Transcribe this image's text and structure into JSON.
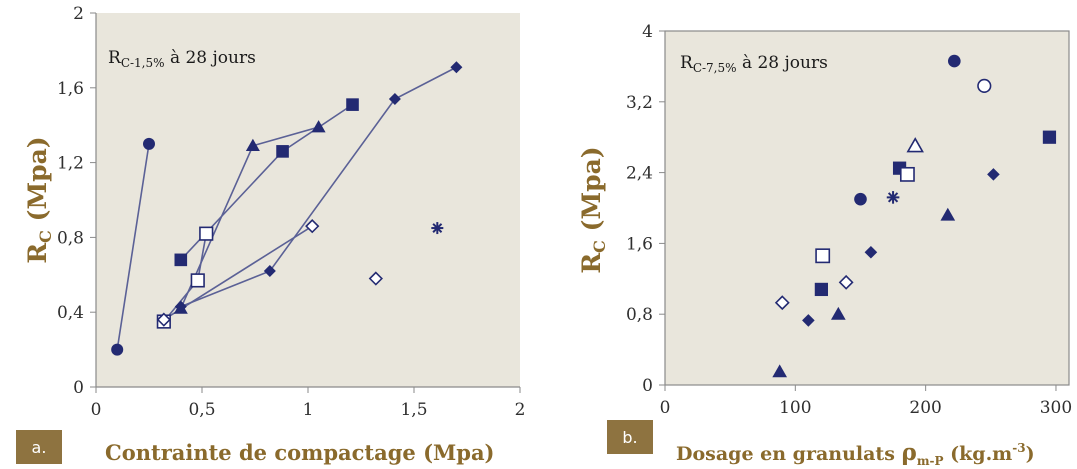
{
  "colors": {
    "plot_background": "#e9e6dc",
    "marker": "#232a72",
    "line": "#5b6196",
    "axis_title": "#8a6a2c",
    "badge": "#8e7340"
  },
  "chart_data": [
    {
      "type": "scatter",
      "panel_label": "a.",
      "inset_main": "R",
      "inset_sub": "C-1,5%",
      "inset_rest": "  à 28 jours",
      "xlabel": "Contrainte de compactage (Mpa)",
      "ylabel_main": "R",
      "ylabel_sub": "C",
      "ylabel_rest": " (Mpa)",
      "xlim": [
        0,
        2
      ],
      "ylim": [
        0,
        2
      ],
      "xticks": [
        0,
        0.5,
        1,
        1.5,
        2
      ],
      "xtick_labels": [
        "0",
        "0,5",
        "1",
        "1,5",
        "2"
      ],
      "yticks": [
        0,
        0.4,
        0.8,
        1.2,
        1.6,
        2
      ],
      "ytick_labels": [
        "0",
        "0,4",
        "0,8",
        "1,2",
        "1,6",
        "2"
      ],
      "grid": false,
      "series": [
        {
          "marker": "circle-filled",
          "connected": true,
          "points": [
            [
              0.1,
              0.2
            ],
            [
              0.25,
              1.3
            ]
          ]
        },
        {
          "marker": "square-filled",
          "connected": true,
          "points": [
            [
              0.4,
              0.68
            ],
            [
              0.88,
              1.26
            ],
            [
              1.21,
              1.51
            ]
          ]
        },
        {
          "marker": "triangle-filled",
          "connected": true,
          "points": [
            [
              0.4,
              0.42
            ],
            [
              0.74,
              1.29
            ],
            [
              1.05,
              1.39
            ]
          ]
        },
        {
          "marker": "square-open",
          "connected": true,
          "points": [
            [
              0.32,
              0.35
            ],
            [
              0.48,
              0.57
            ],
            [
              0.52,
              0.82
            ]
          ]
        },
        {
          "marker": "diamond-filled",
          "connected": true,
          "points": [
            [
              0.4,
              0.43
            ],
            [
              0.82,
              0.62
            ],
            [
              1.41,
              1.54
            ],
            [
              1.7,
              1.71
            ]
          ]
        },
        {
          "marker": "diamond-open",
          "connected": true,
          "points": [
            [
              0.32,
              0.36
            ],
            [
              1.02,
              0.86
            ]
          ]
        },
        {
          "marker": "diamond-open",
          "connected": false,
          "points": [
            [
              1.32,
              0.58
            ]
          ]
        },
        {
          "marker": "asterisk",
          "connected": false,
          "points": [
            [
              1.61,
              0.85
            ]
          ]
        }
      ]
    },
    {
      "type": "scatter",
      "panel_label": "b.",
      "inset_main": "R",
      "inset_sub": "C-7,5%",
      "inset_rest": "  à 28 jours",
      "xlabel_main": "Dosage en granulats ",
      "xlabel_rho": "ρ",
      "xlabel_sub": "m-P",
      "xlabel_unit": " (kg.m",
      "xlabel_sup": "-3",
      "xlabel_end": ")",
      "ylabel_main": "R",
      "ylabel_sub": "C",
      "ylabel_rest": " (Mpa)",
      "xlim": [
        0,
        310
      ],
      "ylim": [
        0,
        4
      ],
      "xticks": [
        0,
        100,
        200,
        300
      ],
      "xtick_labels": [
        "0",
        "100",
        "200",
        "300"
      ],
      "yticks": [
        0,
        0.8,
        1.6,
        2.4,
        3.2,
        4
      ],
      "ytick_labels": [
        "0",
        "0,8",
        "1,6",
        "2,4",
        "3,2",
        "4"
      ],
      "grid": false,
      "series": [
        {
          "marker": "circle-filled",
          "points": [
            [
              150,
              2.1
            ],
            [
              222,
              3.66
            ]
          ]
        },
        {
          "marker": "circle-open",
          "points": [
            [
              245,
              3.38
            ]
          ]
        },
        {
          "marker": "square-filled",
          "points": [
            [
              120,
              1.08
            ],
            [
              180,
              2.45
            ],
            [
              295,
              2.8
            ]
          ]
        },
        {
          "marker": "square-open",
          "points": [
            [
              121,
              1.46
            ],
            [
              186,
              2.38
            ]
          ]
        },
        {
          "marker": "triangle-filled",
          "points": [
            [
              88,
              0.15
            ],
            [
              133,
              0.8
            ],
            [
              217,
              1.92
            ]
          ]
        },
        {
          "marker": "triangle-open",
          "points": [
            [
              192,
              2.7
            ]
          ]
        },
        {
          "marker": "diamond-filled",
          "points": [
            [
              110,
              0.73
            ],
            [
              158,
              1.5
            ],
            [
              252,
              2.38
            ]
          ]
        },
        {
          "marker": "diamond-open",
          "points": [
            [
              90,
              0.93
            ],
            [
              139,
              1.16
            ]
          ]
        },
        {
          "marker": "asterisk",
          "points": [
            [
              175,
              2.12
            ]
          ]
        }
      ]
    }
  ]
}
